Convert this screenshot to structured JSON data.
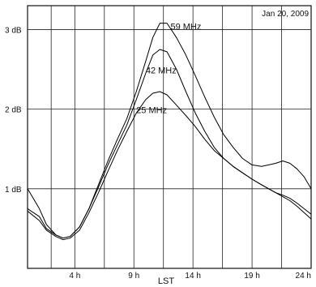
{
  "chart_data": {
    "type": "line",
    "title": "",
    "annotation": "Jan  20, 2009",
    "xlabel": "LST",
    "ylabel": "",
    "xlim": [
      0,
      24
    ],
    "ylim": [
      0,
      3.3
    ],
    "grid": true,
    "x_ticks": [
      {
        "value": 4,
        "label": "4 h"
      },
      {
        "value": 9,
        "label": "9 h"
      },
      {
        "value": 14,
        "label": "14 h"
      },
      {
        "value": 19,
        "label": "19 h"
      },
      {
        "value": 24,
        "label": "24 h"
      }
    ],
    "x_gridlines": [
      2,
      4,
      6.5,
      9,
      11.5,
      14,
      16.5,
      19,
      21.5
    ],
    "y_ticks": [
      {
        "value": 1,
        "label": "1 dB"
      },
      {
        "value": 2,
        "label": "2 dB"
      },
      {
        "value": 3,
        "label": "3 dB"
      }
    ],
    "series": [
      {
        "name": "59 MHz",
        "x": [
          0,
          1,
          1.6,
          2.4,
          3,
          3.6,
          4.4,
          5.2,
          6,
          6.8,
          7.6,
          8.4,
          9.2,
          10,
          10.6,
          11.2,
          11.8,
          12.6,
          13.4,
          14.2,
          15,
          15.8,
          16.6,
          17.4,
          18.2,
          19,
          19.8,
          20.4,
          21,
          21.6,
          22.2,
          22.8,
          23.4,
          24
        ],
        "values": [
          1.0,
          0.75,
          0.55,
          0.42,
          0.38,
          0.4,
          0.52,
          0.75,
          1.05,
          1.35,
          1.62,
          1.88,
          2.22,
          2.6,
          2.9,
          3.08,
          3.08,
          2.9,
          2.68,
          2.42,
          2.15,
          1.9,
          1.68,
          1.52,
          1.38,
          1.3,
          1.28,
          1.3,
          1.32,
          1.35,
          1.32,
          1.25,
          1.15,
          1.0
        ]
      },
      {
        "name": "42 MHz",
        "x": [
          0,
          1,
          1.6,
          2.4,
          3,
          3.6,
          4.4,
          5.2,
          6,
          6.8,
          7.6,
          8.4,
          9.2,
          10,
          10.6,
          11.2,
          11.8,
          12.6,
          13.4,
          14.2,
          15,
          15.8,
          16.6,
          17.4,
          18.2,
          19,
          19.8,
          20.4,
          21,
          21.6,
          22.2,
          22.8,
          23.4,
          24
        ],
        "values": [
          0.75,
          0.65,
          0.5,
          0.42,
          0.38,
          0.4,
          0.52,
          0.75,
          1.02,
          1.3,
          1.55,
          1.8,
          2.12,
          2.45,
          2.68,
          2.75,
          2.72,
          2.5,
          2.22,
          1.95,
          1.72,
          1.52,
          1.38,
          1.28,
          1.2,
          1.12,
          1.05,
          1.0,
          0.95,
          0.92,
          0.88,
          0.82,
          0.75,
          0.68
        ]
      },
      {
        "name": "25 MHz",
        "x": [
          0,
          1,
          1.6,
          2.4,
          3,
          3.6,
          4.4,
          5.2,
          6,
          6.8,
          7.6,
          8.4,
          9.2,
          10,
          10.6,
          11.2,
          11.8,
          12.6,
          13.4,
          14.2,
          15,
          15.8,
          16.6,
          17.4,
          18.2,
          19,
          19.8,
          20.4,
          21,
          21.6,
          22.2,
          22.8,
          23.4,
          24
        ],
        "values": [
          0.72,
          0.6,
          0.48,
          0.4,
          0.36,
          0.38,
          0.48,
          0.7,
          0.95,
          1.22,
          1.48,
          1.72,
          1.95,
          2.12,
          2.2,
          2.22,
          2.18,
          2.05,
          1.92,
          1.78,
          1.62,
          1.48,
          1.38,
          1.28,
          1.2,
          1.12,
          1.05,
          1.0,
          0.95,
          0.9,
          0.85,
          0.78,
          0.7,
          0.62
        ]
      }
    ],
    "series_labels": [
      {
        "series": "59 MHz",
        "x": 12.1,
        "y": 3.0
      },
      {
        "series": "42 MHz",
        "x": 10.0,
        "y": 2.45
      },
      {
        "series": "25 MHz",
        "x": 9.2,
        "y": 1.95
      }
    ]
  }
}
